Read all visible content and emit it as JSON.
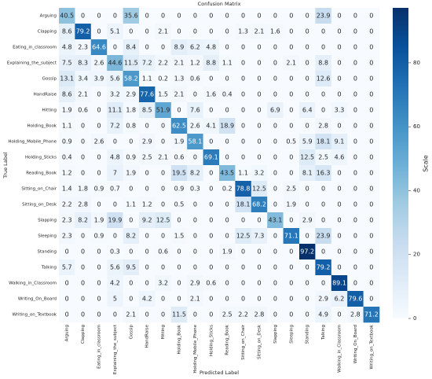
{
  "chart_data": {
    "type": "heatmap",
    "title": "Confusion Matrix",
    "x_label": "Predicted Label",
    "y_label": "True Label",
    "categories": [
      "Arguing",
      "Clapping",
      "Eating_in_classroom",
      "Explaining_the_subject",
      "Gossip",
      "HandRaise",
      "Hitting",
      "Holding_Book",
      "Holding_Mobile_Phone",
      "Holding_Sticks",
      "Reading_Book",
      "Sitting_on_Chair",
      "Sitting_on_Desk",
      "Slapping",
      "Sleeping",
      "Standing",
      "Talking",
      "Walking_in_Classroom",
      "Writing_On_Board",
      "Writing_on_Textbook"
    ],
    "values": [
      [
        40.5,
        0,
        0,
        0,
        35.6,
        0,
        0,
        0,
        0,
        0,
        0,
        0,
        0,
        0,
        0,
        0,
        23.9,
        0,
        0,
        0
      ],
      [
        8.6,
        79.2,
        0,
        5.1,
        0,
        0,
        2.1,
        0,
        0,
        0,
        0,
        1.3,
        2.1,
        1.6,
        0,
        0,
        0,
        0,
        0,
        0
      ],
      [
        4.8,
        2.3,
        64.6,
        0,
        8.4,
        0,
        0,
        8.9,
        6.2,
        4.8,
        0,
        0,
        0,
        0,
        0,
        0,
        0,
        0,
        0,
        0
      ],
      [
        7.5,
        8.3,
        2.6,
        44.6,
        11.5,
        7.2,
        2.2,
        2.1,
        1.2,
        8.8,
        1.1,
        0,
        0,
        0,
        2.1,
        0,
        8.8,
        0,
        0,
        0
      ],
      [
        13.1,
        3.4,
        3.9,
        5.6,
        58.2,
        1.1,
        0.2,
        1.3,
        0.6,
        0,
        0,
        0,
        0,
        0,
        0,
        0,
        12.6,
        0,
        0,
        0
      ],
      [
        8.6,
        2.1,
        0,
        3.2,
        2.9,
        77.6,
        1.5,
        2.1,
        0,
        1.6,
        0.4,
        0,
        0,
        0,
        0,
        0,
        0,
        0,
        0,
        0
      ],
      [
        1.9,
        0.6,
        0,
        11.1,
        1.8,
        8.5,
        51.9,
        0,
        7.6,
        0,
        0,
        0,
        0,
        6.9,
        0,
        6.4,
        0,
        3.3,
        0,
        0
      ],
      [
        1.1,
        0,
        0,
        7.2,
        0.8,
        0,
        0,
        62.5,
        2.6,
        4.1,
        18.9,
        0,
        0,
        0,
        0,
        0,
        2.8,
        0,
        0,
        0
      ],
      [
        0.9,
        0,
        2.6,
        0,
        0,
        2.9,
        0,
        1.9,
        58.1,
        0,
        0,
        0,
        0,
        0,
        0.5,
        5.9,
        18.1,
        9.1,
        0,
        0
      ],
      [
        0.4,
        0,
        0,
        4.8,
        0.9,
        2.5,
        2.1,
        0.6,
        0,
        69.1,
        0,
        0,
        0,
        0,
        0,
        12.5,
        2.5,
        4.6,
        0,
        0
      ],
      [
        1.2,
        0,
        0,
        7,
        1.9,
        0,
        0,
        19.5,
        8.2,
        0,
        43.5,
        1.1,
        3.2,
        0,
        0,
        8.1,
        16.3,
        0,
        0,
        0
      ],
      [
        1.4,
        1.8,
        0.9,
        0.7,
        0,
        0,
        0,
        0.9,
        0.3,
        0,
        0.2,
        78.8,
        12.5,
        0,
        2.5,
        0,
        0,
        0,
        0,
        0
      ],
      [
        2.2,
        2.8,
        0,
        0,
        1.1,
        1.2,
        0,
        0.5,
        0,
        0,
        0,
        18.1,
        68.2,
        0,
        1.9,
        0,
        0,
        0,
        0,
        0
      ],
      [
        2.3,
        8.2,
        1.9,
        19.9,
        0,
        9.2,
        12.5,
        0,
        0,
        0,
        0,
        0,
        0,
        43.1,
        0,
        2.9,
        0,
        0,
        0,
        0
      ],
      [
        2.3,
        0,
        0.9,
        0,
        8.2,
        0,
        0,
        1.5,
        0,
        0,
        0,
        12.5,
        7.3,
        0,
        71.1,
        0,
        23.9,
        0,
        0,
        0
      ],
      [
        0,
        0,
        0,
        0.3,
        0,
        0,
        0.6,
        0,
        0,
        0,
        1.9,
        0,
        0,
        0,
        0,
        97.2,
        0,
        0,
        0,
        0
      ],
      [
        5.7,
        0,
        0,
        5.6,
        9.5,
        0,
        0,
        0,
        0,
        0,
        0,
        0,
        0,
        0,
        0,
        0,
        79.2,
        0,
        0,
        0
      ],
      [
        0,
        0,
        0,
        4.2,
        0,
        0,
        3.2,
        0,
        2.9,
        0.6,
        0,
        0,
        0,
        0,
        0,
        0,
        0,
        89.1,
        0,
        0
      ],
      [
        0,
        0,
        0,
        5,
        0,
        4.2,
        0,
        0,
        2.1,
        0,
        0,
        0,
        0,
        0,
        0,
        0,
        2.9,
        6.2,
        79.6,
        0
      ],
      [
        0,
        0,
        0,
        0,
        2.1,
        0,
        0,
        11.5,
        0,
        0,
        2.5,
        2.2,
        2.8,
        0,
        0,
        0,
        4.9,
        0,
        2.8,
        71.2
      ]
    ],
    "colormap": "Blues",
    "colorbar_label": "Scale",
    "clim": [
      0,
      97.2
    ],
    "colorbar_ticks": [
      0,
      20,
      40,
      60,
      80
    ]
  }
}
